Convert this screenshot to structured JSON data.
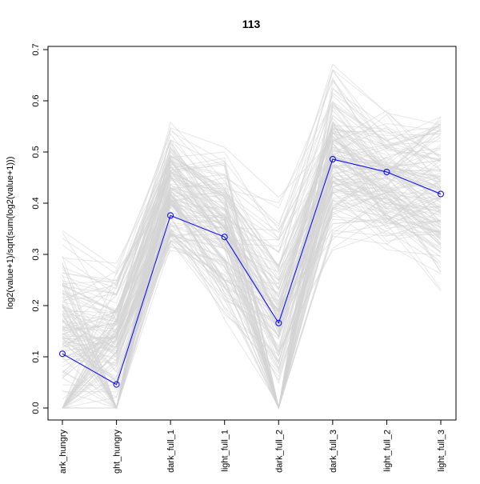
{
  "chart_data": {
    "type": "line",
    "title": "113",
    "xlabel": "",
    "ylabel": "log2(value+1)/sqrt(sum(log2(value+1)))",
    "categories": [
      "dark_hungry",
      "light_hungry",
      "dark_full_1",
      "light_full_1",
      "dark_full_2",
      "dark_full_3",
      "light_full_2",
      "light_full_3"
    ],
    "tick_labels": [
      "ark_hungry",
      "ght_hungry",
      "dark_full_1",
      "light_full_1",
      "dark_full_2",
      "dark_full_3",
      "light_full_2",
      "light_full_3"
    ],
    "y_ticks": [
      "0.0",
      "0.1",
      "0.2",
      "0.3",
      "0.4",
      "0.5",
      "0.6",
      "0.7"
    ],
    "ylim": [
      0,
      0.7
    ],
    "grid": false,
    "highlight_series": {
      "values": [
        0.106,
        0.046,
        0.376,
        0.334,
        0.166,
        0.486,
        0.461,
        0.418
      ],
      "color": "#0000ff",
      "markers": "open-circle"
    },
    "background_series": {
      "color": "#d3d3d3",
      "count": 150,
      "ranges": [
        [
          0.0,
          0.35
        ],
        [
          0.0,
          0.3
        ],
        [
          0.27,
          0.57
        ],
        [
          0.17,
          0.52
        ],
        [
          0.0,
          0.42
        ],
        [
          0.3,
          0.68
        ],
        [
          0.29,
          0.6
        ],
        [
          0.22,
          0.6
        ]
      ]
    }
  }
}
